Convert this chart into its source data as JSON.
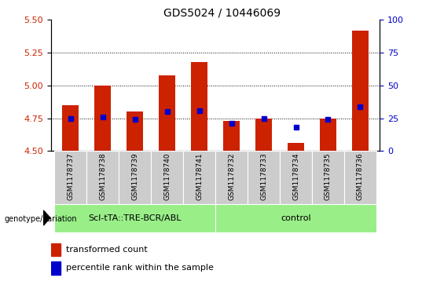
{
  "title": "GDS5024 / 10446069",
  "samples": [
    "GSM1178737",
    "GSM1178738",
    "GSM1178739",
    "GSM1178740",
    "GSM1178741",
    "GSM1178732",
    "GSM1178733",
    "GSM1178734",
    "GSM1178735",
    "GSM1178736"
  ],
  "transformed_counts": [
    4.85,
    5.0,
    4.8,
    5.08,
    5.18,
    4.73,
    4.75,
    4.56,
    4.75,
    5.42
  ],
  "percentile_ranks": [
    25,
    26,
    24,
    30,
    31,
    21,
    25,
    18,
    24,
    34
  ],
  "ylim": [
    4.5,
    5.5
  ],
  "yticks": [
    4.5,
    4.75,
    5.0,
    5.25,
    5.5
  ],
  "right_yticks": [
    0,
    25,
    50,
    75,
    100
  ],
  "right_ylim": [
    0,
    100
  ],
  "bar_color": "#cc2200",
  "dot_color": "#0000cc",
  "grid_color": "black",
  "group1_label": "Scl-tTA::TRE-BCR/ABL",
  "group2_label": "control",
  "group1_indices": [
    0,
    1,
    2,
    3,
    4
  ],
  "group2_indices": [
    5,
    6,
    7,
    8,
    9
  ],
  "group_bg_color": "#99ee88",
  "sample_bg_color": "#cccccc",
  "legend_bar_label": "transformed count",
  "legend_dot_label": "percentile rank within the sample",
  "ylabel_color": "#cc2200",
  "right_ylabel_color": "#0000cc",
  "base_value": 4.5,
  "fig_width": 5.65,
  "fig_height": 3.63
}
